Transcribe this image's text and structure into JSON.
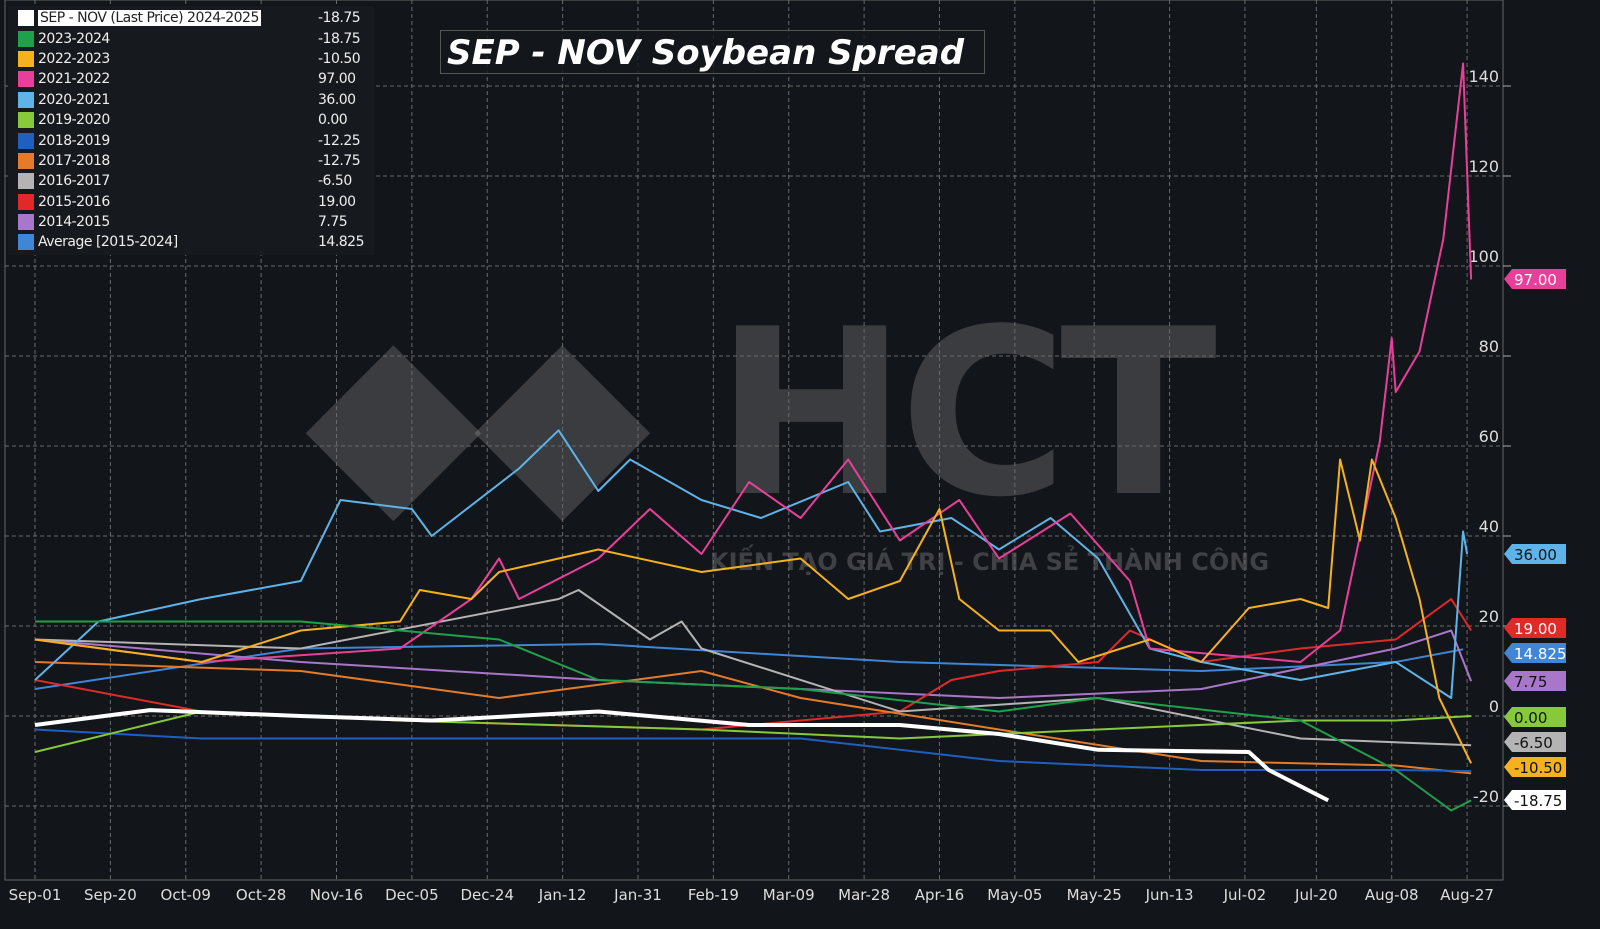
{
  "chart_data": {
    "type": "line",
    "title": "SEP - NOV Soybean Spread",
    "x_unit": "days since Sep-01",
    "x_ticks": [
      "Sep-01",
      "Sep-20",
      "Oct-09",
      "Oct-28",
      "Nov-16",
      "Dec-05",
      "Dec-24",
      "Jan-12",
      "Jan-31",
      "Feb-19",
      "Mar-09",
      "Mar-28",
      "Apr-16",
      "May-05",
      "May-25",
      "Jun-13",
      "Jul-02",
      "Jul-20",
      "Aug-08",
      "Aug-27"
    ],
    "x_tick_days": [
      0,
      19,
      38,
      57,
      76,
      95,
      114,
      133,
      152,
      171,
      190,
      209,
      228,
      247,
      267,
      286,
      305,
      323,
      342,
      361
    ],
    "ylim": [
      -36,
      159
    ],
    "y_ticks": [
      140,
      120,
      100,
      80,
      60,
      40,
      20,
      0,
      -20
    ],
    "legend_placement": "top-left",
    "grid": true,
    "series": [
      {
        "name": "SEP - NOV (Last Price) 2024-2025",
        "last": "-18.75",
        "color": "#ffffff",
        "width": 4,
        "points": [
          [
            0,
            -2
          ],
          [
            29,
            1.3
          ],
          [
            67,
            0
          ],
          [
            100,
            -1
          ],
          [
            142,
            1
          ],
          [
            180,
            -2
          ],
          [
            218,
            -2
          ],
          [
            243,
            -4
          ],
          [
            268,
            -7.5
          ],
          [
            306,
            -8
          ],
          [
            311,
            -12
          ],
          [
            326,
            -18.75
          ]
        ]
      },
      {
        "name": "2023-2024",
        "last": "-18.75",
        "color": "#1fa04a",
        "points": [
          [
            0,
            21
          ],
          [
            67,
            21
          ],
          [
            117,
            17
          ],
          [
            142,
            8
          ],
          [
            193,
            6
          ],
          [
            243,
            1
          ],
          [
            268,
            4
          ],
          [
            319,
            -1
          ],
          [
            343,
            -12
          ],
          [
            357,
            -21
          ],
          [
            362,
            -18.75
          ]
        ]
      },
      {
        "name": "2022-2023",
        "last": "-10.50",
        "color": "#f5b11e",
        "points": [
          [
            0,
            17
          ],
          [
            42,
            12
          ],
          [
            67,
            19
          ],
          [
            92,
            21
          ],
          [
            97,
            28
          ],
          [
            110,
            26
          ],
          [
            117,
            32
          ],
          [
            132,
            35
          ],
          [
            142,
            37
          ],
          [
            168,
            32
          ],
          [
            193,
            35
          ],
          [
            205,
            26
          ],
          [
            218,
            30
          ],
          [
            228,
            46
          ],
          [
            233,
            26
          ],
          [
            243,
            19
          ],
          [
            256,
            19
          ],
          [
            263,
            12
          ],
          [
            281,
            17
          ],
          [
            294,
            12
          ],
          [
            306,
            24
          ],
          [
            319,
            26
          ],
          [
            326,
            24
          ],
          [
            329,
            57
          ],
          [
            334,
            39
          ],
          [
            337,
            57
          ],
          [
            343,
            44
          ],
          [
            349,
            26
          ],
          [
            354,
            4
          ],
          [
            362,
            -10.5
          ]
        ]
      },
      {
        "name": "2021-2022",
        "last": "97.00",
        "color": "#e8409a",
        "points": [
          [
            0,
            17
          ],
          [
            42,
            12
          ],
          [
            92,
            15
          ],
          [
            110,
            26
          ],
          [
            117,
            35
          ],
          [
            122,
            26
          ],
          [
            142,
            35
          ],
          [
            155,
            46
          ],
          [
            168,
            36
          ],
          [
            180,
            52
          ],
          [
            193,
            44
          ],
          [
            205,
            57
          ],
          [
            218,
            39
          ],
          [
            233,
            48
          ],
          [
            243,
            35
          ],
          [
            261,
            45
          ],
          [
            276,
            30
          ],
          [
            281,
            15
          ],
          [
            319,
            12
          ],
          [
            329,
            19
          ],
          [
            339,
            61
          ],
          [
            342,
            84
          ],
          [
            343,
            72
          ],
          [
            349,
            81
          ],
          [
            355,
            106
          ],
          [
            360,
            145
          ],
          [
            362,
            97
          ]
        ]
      },
      {
        "name": "2020-2021",
        "last": "36.00",
        "color": "#5eb3e8",
        "points": [
          [
            0,
            8
          ],
          [
            16,
            21
          ],
          [
            42,
            26
          ],
          [
            67,
            30
          ],
          [
            77,
            48
          ],
          [
            95,
            46
          ],
          [
            100,
            40
          ],
          [
            122,
            55
          ],
          [
            132,
            63.5
          ],
          [
            142,
            50
          ],
          [
            150,
            57
          ],
          [
            168,
            48
          ],
          [
            183,
            44
          ],
          [
            205,
            52
          ],
          [
            213,
            41
          ],
          [
            231,
            44
          ],
          [
            243,
            37
          ],
          [
            256,
            44
          ],
          [
            268,
            35
          ],
          [
            281,
            15
          ],
          [
            294,
            12
          ],
          [
            319,
            8
          ],
          [
            343,
            12
          ],
          [
            357,
            4
          ],
          [
            360,
            41
          ],
          [
            361,
            36
          ]
        ]
      },
      {
        "name": "2019-2020",
        "last": "0.00",
        "color": "#86c93a",
        "points": [
          [
            0,
            -8
          ],
          [
            42,
            1
          ],
          [
            92,
            -1
          ],
          [
            168,
            -3
          ],
          [
            218,
            -5
          ],
          [
            268,
            -3
          ],
          [
            319,
            -1
          ],
          [
            343,
            -1
          ],
          [
            362,
            0
          ]
        ]
      },
      {
        "name": "2018-2019",
        "last": "-12.25",
        "color": "#1f5fc0",
        "points": [
          [
            0,
            -3
          ],
          [
            42,
            -5
          ],
          [
            117,
            -5
          ],
          [
            193,
            -5
          ],
          [
            243,
            -10
          ],
          [
            294,
            -12
          ],
          [
            343,
            -12
          ],
          [
            362,
            -12.25
          ]
        ]
      },
      {
        "name": "2017-2018",
        "last": "-12.75",
        "color": "#e37b2b",
        "points": [
          [
            0,
            12
          ],
          [
            67,
            10
          ],
          [
            117,
            4
          ],
          [
            168,
            10
          ],
          [
            193,
            4
          ],
          [
            243,
            -3
          ],
          [
            294,
            -10
          ],
          [
            343,
            -11
          ],
          [
            362,
            -12.75
          ]
        ]
      },
      {
        "name": "2016-2017",
        "last": "-6.50",
        "color": "#b4b4b4",
        "points": [
          [
            0,
            17
          ],
          [
            67,
            15
          ],
          [
            132,
            26
          ],
          [
            137,
            28
          ],
          [
            155,
            17
          ],
          [
            163,
            21
          ],
          [
            168,
            15
          ],
          [
            218,
            1
          ],
          [
            268,
            4
          ],
          [
            319,
            -5
          ],
          [
            362,
            -6.5
          ]
        ]
      },
      {
        "name": "2015-2016",
        "last": "19.00",
        "color": "#e02a2a",
        "points": [
          [
            0,
            8
          ],
          [
            42,
            1
          ],
          [
            92,
            -1
          ],
          [
            168,
            -3
          ],
          [
            218,
            1
          ],
          [
            231,
            8
          ],
          [
            243,
            10
          ],
          [
            268,
            12
          ],
          [
            276,
            19
          ],
          [
            294,
            12
          ],
          [
            319,
            15
          ],
          [
            343,
            17
          ],
          [
            357,
            26
          ],
          [
            362,
            19
          ]
        ]
      },
      {
        "name": "2014-2015",
        "last": "7.75",
        "color": "#a877c9",
        "points": [
          [
            0,
            17
          ],
          [
            67,
            12
          ],
          [
            142,
            8
          ],
          [
            193,
            6
          ],
          [
            243,
            4
          ],
          [
            294,
            6
          ],
          [
            343,
            15
          ],
          [
            357,
            19
          ],
          [
            362,
            7.75
          ]
        ]
      },
      {
        "name": "Average  [2015-2024]",
        "last": "14.825",
        "color": "#3f86d6",
        "points": [
          [
            0,
            6
          ],
          [
            67,
            15
          ],
          [
            142,
            16
          ],
          [
            218,
            12
          ],
          [
            294,
            10
          ],
          [
            343,
            12
          ],
          [
            360,
            14.825
          ]
        ]
      }
    ]
  },
  "watermark": {
    "logo": "HCT",
    "slogan": "KIẾN TẠO GIÁ TRỊ - CHIA SẺ THÀNH CÔNG"
  }
}
